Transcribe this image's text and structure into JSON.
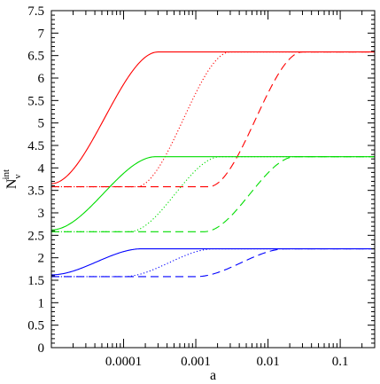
{
  "chart_data": {
    "type": "line",
    "xlabel": "a",
    "ylabel": {
      "base": "N",
      "sub": "ν",
      "sup": "int"
    },
    "xscale": "log",
    "xlim": [
      1e-05,
      0.3
    ],
    "ylim": [
      0,
      7.5
    ],
    "grid": false,
    "legend": "none",
    "x_ticks": [
      {
        "value": 0.0001,
        "label": "0.0001"
      },
      {
        "value": 0.001,
        "label": "0.001"
      },
      {
        "value": 0.01,
        "label": "0.01"
      },
      {
        "value": 0.1,
        "label": "0.1"
      }
    ],
    "y_ticks": [
      "0",
      "0.5",
      "1",
      "1.5",
      "2",
      "2.5",
      "3",
      "3.5",
      "4",
      "4.5",
      "5",
      "5.5",
      "6",
      "6.5",
      "7",
      "7.5"
    ],
    "series": [
      {
        "color": "#ff0000",
        "style": "solid",
        "low": 3.65,
        "high": 6.58,
        "a_start": 1e-05,
        "a_end": 0.0003
      },
      {
        "color": "#ff0000",
        "style": "dotted",
        "low": 3.58,
        "high": 6.58,
        "a_start": 0.00015,
        "a_end": 0.003
      },
      {
        "color": "#ff0000",
        "style": "dashed",
        "low": 3.58,
        "high": 6.58,
        "a_start": 0.0015,
        "a_end": 0.03
      },
      {
        "color": "#00dd00",
        "style": "solid",
        "low": 2.62,
        "high": 4.25,
        "a_start": 1e-05,
        "a_end": 0.00028
      },
      {
        "color": "#00dd00",
        "style": "dotted",
        "low": 2.58,
        "high": 4.25,
        "a_start": 0.00012,
        "a_end": 0.0022
      },
      {
        "color": "#00dd00",
        "style": "dashed",
        "low": 2.58,
        "high": 4.25,
        "a_start": 0.0013,
        "a_end": 0.024
      },
      {
        "color": "#0000ff",
        "style": "solid",
        "low": 1.62,
        "high": 2.2,
        "a_start": 1e-05,
        "a_end": 0.00018
      },
      {
        "color": "#0000ff",
        "style": "dotted",
        "low": 1.58,
        "high": 2.2,
        "a_start": 0.0001,
        "a_end": 0.0018
      },
      {
        "color": "#0000ff",
        "style": "dashed",
        "low": 1.58,
        "high": 2.2,
        "a_start": 0.001,
        "a_end": 0.018
      }
    ]
  }
}
